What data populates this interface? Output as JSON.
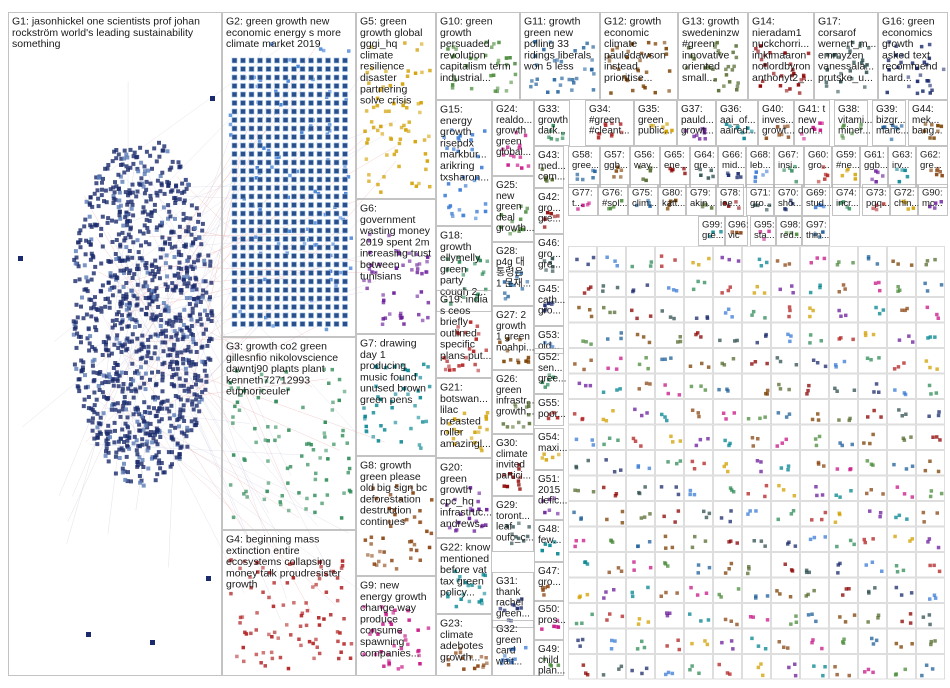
{
  "graph": {
    "groups": [
      {
        "id": "G1",
        "lines": [
          "G1: jasonhickel one scientists prof johan",
          "rockström world's leading sustainability",
          "something"
        ]
      },
      {
        "id": "G2",
        "lines": [
          "G2: green growth new",
          "economic energy s more",
          "climate market 2019"
        ]
      },
      {
        "id": "G3",
        "lines": [
          "G3: growth co2 green",
          "gillesnfio nikolovscience",
          "dawntj90 plants plant",
          "kenneth72712993",
          "euphoriceuler"
        ]
      },
      {
        "id": "G4",
        "lines": [
          "G4: beginning mass",
          "extinction entire",
          "ecosystems collapsing",
          "money talk proudresister",
          "growth"
        ]
      },
      {
        "id": "G5",
        "lines": [
          "G5: green",
          "growth global",
          "gggi_hq",
          "climate",
          "resilience",
          "disaster",
          "partnering",
          "solve crisis"
        ]
      },
      {
        "id": "G6",
        "lines": [
          "G6:",
          "government",
          "wasting money",
          "2019 spent 2m",
          "increasing trust",
          "between",
          "tunisians"
        ]
      },
      {
        "id": "G7",
        "lines": [
          "G7: drawing",
          "day 1",
          "producing",
          "music found",
          "unused brown",
          "green pens"
        ]
      },
      {
        "id": "G8",
        "lines": [
          "G8: growth",
          "green please",
          "old big sign bc",
          "deforestation",
          "destruction",
          "continues"
        ]
      },
      {
        "id": "G9",
        "lines": [
          "G9: new",
          "energy growth",
          "change way",
          "produce",
          "consume",
          "spawning",
          "companies..."
        ]
      },
      {
        "id": "G10",
        "lines": [
          "G10: green",
          "growth",
          "persuaded",
          "revolution",
          "capitalism term",
          "industrial..."
        ]
      },
      {
        "id": "G11",
        "lines": [
          "G11: growth",
          "green new",
          "polling 33",
          "ridings liberals",
          "won 5 less"
        ]
      },
      {
        "id": "G12",
        "lines": [
          "G12: growth",
          "economic",
          "climate",
          "pauledawson",
          "instead",
          "prioritise..."
        ]
      },
      {
        "id": "G13",
        "lines": [
          "G13: growth",
          "swedeninzw",
          "#green",
          "innovative",
          "oriented",
          "small..."
        ]
      },
      {
        "id": "G14",
        "lines": [
          "G14:",
          "nieradam1",
          "nuckchorri...",
          "imkimaaron",
          "notlordbyron",
          "anthonyt2_..."
        ]
      },
      {
        "id": "G17",
        "lines": [
          "G17:",
          "corsarof",
          "wernert_m...",
          "emmyzen",
          "vanessala...",
          "prutske_u..."
        ]
      },
      {
        "id": "G16",
        "lines": [
          "G16: green",
          "economics",
          "growth",
          "asked text",
          "recommend",
          "hard..."
        ]
      },
      {
        "id": "G15",
        "lines": [
          "G15:",
          "energy",
          "growth",
          "risepdx",
          "markbur...",
          "arikring",
          "txsharon..."
        ]
      },
      {
        "id": "G18",
        "lines": [
          "G18:",
          "growth",
          "ellymelly",
          "green",
          "party",
          "cough 2..."
        ]
      },
      {
        "id": "G19",
        "lines": [
          "G19: india",
          "s ceos",
          "briefly",
          "outlined",
          "specific",
          "plans put..."
        ]
      },
      {
        "id": "G21",
        "lines": [
          "G21:",
          "botswan...",
          "lilac",
          "breasted",
          "roller",
          "amazingl..."
        ]
      },
      {
        "id": "G20",
        "lines": [
          "G20:",
          "green",
          "growth",
          "cpc_hq",
          "infrastruc...",
          "andrews..."
        ]
      },
      {
        "id": "G22",
        "lines": [
          "G22: know",
          "mentioned",
          "before vat",
          "tax green",
          "policy..."
        ]
      },
      {
        "id": "G23",
        "lines": [
          "G23:",
          "climate",
          "adebotes",
          "growth..."
        ]
      },
      {
        "id": "G24",
        "lines": [
          "G24:",
          "realdo...",
          "growth",
          "green",
          "global..."
        ]
      },
      {
        "id": "G25",
        "lines": [
          "G25:",
          "new",
          "green",
          "deal",
          "growth..."
        ]
      },
      {
        "id": "G28",
        "lines": [
          "G28:",
          "p4g 대",
          "통령은",
          "1 문재..."
        ]
      },
      {
        "id": "G27",
        "lines": [
          "G27: 2",
          "growth",
          "1 green",
          "noahpi..."
        ]
      },
      {
        "id": "G26",
        "lines": [
          "G26:",
          "green",
          "infrastr...",
          "growth..."
        ]
      },
      {
        "id": "G30",
        "lines": [
          "G30:",
          "climate",
          "invited",
          "partici..."
        ]
      },
      {
        "id": "G29",
        "lines": [
          "G29:",
          "toront...",
          "leaf",
          "oufc_c..."
        ]
      },
      {
        "id": "G31",
        "lines": [
          "G31:",
          "thank",
          "rachel",
          "green..."
        ]
      },
      {
        "id": "G32",
        "lines": [
          "G32:",
          "green",
          "card",
          "wait..."
        ]
      },
      {
        "id": "G33",
        "lines": [
          "G33:",
          "growth",
          "dark..."
        ]
      },
      {
        "id": "G34",
        "lines": [
          "G34:",
          "#green",
          "#cleant..."
        ]
      },
      {
        "id": "G35",
        "lines": [
          "G35:",
          "green",
          "public..."
        ]
      },
      {
        "id": "G37",
        "lines": [
          "G37:",
          "pauld...",
          "growt..."
        ]
      },
      {
        "id": "G36",
        "lines": [
          "G36:",
          "aai_of...",
          "aaired..."
        ]
      },
      {
        "id": "G40",
        "lines": [
          "G40:",
          "inves...",
          "growt..."
        ]
      },
      {
        "id": "G41",
        "lines": [
          "G41: t",
          "new",
          "don..."
        ]
      },
      {
        "id": "G38",
        "lines": [
          "G38:",
          "vitami...",
          "miner..."
        ]
      },
      {
        "id": "G39",
        "lines": [
          "G39:",
          "bizgr...",
          "manc..."
        ]
      },
      {
        "id": "G44",
        "lines": [
          "G44:",
          "mek...",
          "bang..."
        ]
      },
      {
        "id": "G43",
        "lines": [
          "G43:",
          "med...",
          "com..."
        ]
      },
      {
        "id": "G42",
        "lines": [
          "G42:",
          "gro...",
          "gre..."
        ]
      },
      {
        "id": "G46",
        "lines": [
          "G46:",
          "gro...",
          "gre..."
        ]
      },
      {
        "id": "G45",
        "lines": [
          "G45:",
          "cath...",
          "gro..."
        ]
      },
      {
        "id": "G53",
        "lines": [
          "G53:",
          "old..."
        ]
      },
      {
        "id": "G52",
        "lines": [
          "G52:",
          "sen...",
          "gree..."
        ]
      },
      {
        "id": "G55",
        "lines": [
          "G55:",
          "poor..."
        ]
      },
      {
        "id": "G54",
        "lines": [
          "G54:",
          "maxi..."
        ]
      },
      {
        "id": "G51",
        "lines": [
          "G51:",
          "2015",
          "defic..."
        ]
      },
      {
        "id": "G48",
        "lines": [
          "G48:",
          "few..."
        ]
      },
      {
        "id": "G47",
        "lines": [
          "G47:",
          "gro..."
        ]
      },
      {
        "id": "G50",
        "lines": [
          "G50:",
          "pros..."
        ]
      },
      {
        "id": "G49",
        "lines": [
          "G49:",
          "child",
          "plan..."
        ]
      },
      {
        "id": "G58",
        "lines": [
          "G58:",
          "gree..."
        ]
      },
      {
        "id": "G57",
        "lines": [
          "G57:",
          "ggb..."
        ]
      },
      {
        "id": "G56",
        "lines": [
          "G56:",
          "way..."
        ]
      },
      {
        "id": "G65",
        "lines": [
          "G65:",
          "ene..."
        ]
      },
      {
        "id": "G64",
        "lines": [
          "G64:",
          "gre..."
        ]
      },
      {
        "id": "G66",
        "lines": [
          "G66:",
          "mid..."
        ]
      },
      {
        "id": "G68",
        "lines": [
          "G68:",
          "leb..."
        ]
      },
      {
        "id": "G67",
        "lines": [
          "G67:",
          "insi..."
        ]
      },
      {
        "id": "G60",
        "lines": [
          "G60:",
          "gro..."
        ]
      },
      {
        "id": "G59",
        "lines": [
          "G59:",
          "#ne..."
        ]
      },
      {
        "id": "G61",
        "lines": [
          "G61:",
          "ggb..."
        ]
      },
      {
        "id": "G63",
        "lines": [
          "G63:",
          "irv..."
        ]
      },
      {
        "id": "G62",
        "lines": [
          "G62:",
          "gre..."
        ]
      },
      {
        "id": "G77",
        "lines": [
          "G77:",
          "t..."
        ]
      },
      {
        "id": "G76",
        "lines": [
          "G76:",
          "#sol..."
        ]
      },
      {
        "id": "G75",
        "lines": [
          "G75:",
          "clim..."
        ]
      },
      {
        "id": "G80",
        "lines": [
          "G80:",
          "katt..."
        ]
      },
      {
        "id": "G79",
        "lines": [
          "G79:",
          "akin..."
        ]
      },
      {
        "id": "G78",
        "lines": [
          "G78:",
          "ioe..."
        ]
      },
      {
        "id": "G71",
        "lines": [
          "G71:",
          "gro..."
        ]
      },
      {
        "id": "G70",
        "lines": [
          "G70:",
          "sho..."
        ]
      },
      {
        "id": "G69",
        "lines": [
          "G69:",
          "stud..."
        ]
      },
      {
        "id": "G74",
        "lines": [
          "G74:",
          "incr..."
        ]
      },
      {
        "id": "G73",
        "lines": [
          "G73:",
          "pqq..."
        ]
      },
      {
        "id": "G72",
        "lines": [
          "G72:",
          "chin..."
        ]
      },
      {
        "id": "G90",
        "lines": [
          "G90:",
          "mc..."
        ]
      },
      {
        "id": "G99",
        "lines": [
          "G99:",
          "gre..."
        ]
      },
      {
        "id": "G96",
        "lines": [
          "G96:",
          "vic"
        ]
      },
      {
        "id": "G95",
        "lines": [
          "G95:",
          "sta..."
        ]
      },
      {
        "id": "G98",
        "lines": [
          "G98:",
          "red..."
        ]
      },
      {
        "id": "G97",
        "lines": [
          "G97:",
          "thin..."
        ]
      }
    ]
  }
}
